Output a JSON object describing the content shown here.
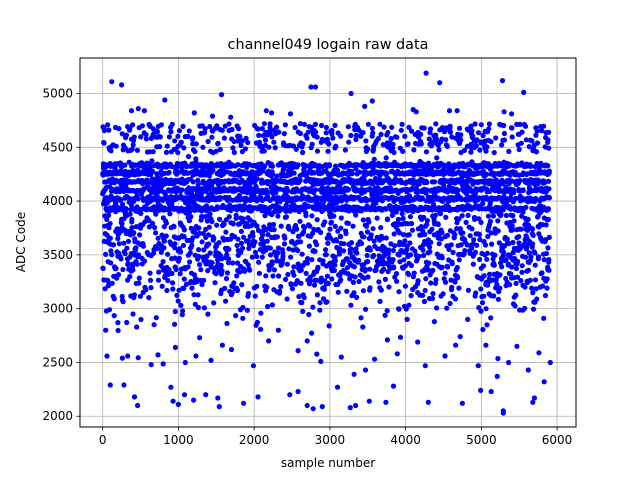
{
  "chart_data": {
    "type": "scatter",
    "title": "channel049 logain raw data",
    "xlabel": "sample number",
    "ylabel": "ADC Code",
    "xlim": [
      -300,
      6250
    ],
    "ylim": [
      1900,
      5330
    ],
    "xticks": [
      0,
      1000,
      2000,
      3000,
      4000,
      5000,
      6000
    ],
    "yticks": [
      2000,
      2500,
      3000,
      3500,
      4000,
      4500,
      5000
    ],
    "xtick_labels": [
      "0",
      "1000",
      "2000",
      "3000",
      "4000",
      "5000",
      "6000"
    ],
    "ytick_labels": [
      "2000",
      "2500",
      "3000",
      "3500",
      "4000",
      "4500",
      "5000"
    ],
    "grid": true,
    "marker_color": "#0000ff",
    "series": [
      {
        "points": [
          [
            120,
            5110
          ],
          [
            250,
            5080
          ],
          [
            4270,
            5190
          ],
          [
            4450,
            5100
          ],
          [
            5280,
            5120
          ],
          [
            5560,
            5010
          ],
          [
            2750,
            5060
          ],
          [
            2810,
            5060
          ],
          [
            3280,
            5000
          ],
          [
            1570,
            4990
          ],
          [
            20,
            4670
          ],
          [
            80,
            4660
          ],
          [
            380,
            4840
          ],
          [
            470,
            4860
          ],
          [
            550,
            4840
          ],
          [
            820,
            4940
          ],
          [
            1210,
            4820
          ],
          [
            1450,
            4790
          ],
          [
            1690,
            4780
          ],
          [
            2160,
            4840
          ],
          [
            2230,
            4820
          ],
          [
            2480,
            4810
          ],
          [
            3460,
            4880
          ],
          [
            3560,
            4930
          ],
          [
            4100,
            4850
          ],
          [
            4140,
            4830
          ],
          [
            4580,
            4840
          ],
          [
            4680,
            4840
          ],
          [
            5000,
            4710
          ],
          [
            5300,
            4830
          ],
          [
            5400,
            4810
          ],
          [
            5720,
            4680
          ],
          [
            5880,
            4570
          ],
          [
            100,
            2290
          ],
          [
            280,
            2290
          ],
          [
            330,
            2560
          ],
          [
            260,
            2540
          ],
          [
            420,
            2180
          ],
          [
            460,
            2100
          ],
          [
            900,
            2270
          ],
          [
            930,
            2140
          ],
          [
            1000,
            2110
          ],
          [
            1080,
            2200
          ],
          [
            1200,
            2150
          ],
          [
            1360,
            2200
          ],
          [
            1520,
            2170
          ],
          [
            1540,
            2090
          ],
          [
            1860,
            2120
          ],
          [
            2050,
            2180
          ],
          [
            2470,
            2200
          ],
          [
            2580,
            2230
          ],
          [
            2700,
            2100
          ],
          [
            2780,
            2070
          ],
          [
            2900,
            2090
          ],
          [
            3100,
            2270
          ],
          [
            3270,
            2080
          ],
          [
            3340,
            2100
          ],
          [
            3520,
            2140
          ],
          [
            3740,
            2130
          ],
          [
            3840,
            2280
          ],
          [
            4300,
            2130
          ],
          [
            4750,
            2120
          ],
          [
            4990,
            2240
          ],
          [
            5130,
            2230
          ],
          [
            5290,
            2050
          ],
          [
            5290,
            2030
          ],
          [
            5680,
            2130
          ],
          [
            5700,
            2170
          ],
          [
            5830,
            2320
          ],
          [
            40,
            2800
          ],
          [
            90,
            2990
          ],
          [
            200,
            2870
          ],
          [
            400,
            2950
          ],
          [
            640,
            2480
          ],
          [
            730,
            2570
          ],
          [
            960,
            2640
          ],
          [
            1090,
            2500
          ],
          [
            1230,
            2560
          ],
          [
            1280,
            2730
          ],
          [
            1430,
            2520
          ],
          [
            1580,
            2660
          ],
          [
            1700,
            2620
          ],
          [
            1850,
            2910
          ],
          [
            1990,
            2470
          ],
          [
            2190,
            2700
          ],
          [
            2320,
            2800
          ],
          [
            2580,
            2610
          ],
          [
            2700,
            2700
          ],
          [
            2880,
            2510
          ],
          [
            2990,
            2840
          ],
          [
            3150,
            2550
          ],
          [
            3320,
            2390
          ],
          [
            3470,
            2430
          ],
          [
            3590,
            2530
          ],
          [
            3760,
            2710
          ],
          [
            3890,
            2580
          ],
          [
            4020,
            2900
          ],
          [
            4160,
            2690
          ],
          [
            4260,
            2470
          ],
          [
            4380,
            2880
          ],
          [
            4520,
            2560
          ],
          [
            4660,
            2660
          ],
          [
            4820,
            2900
          ],
          [
            4960,
            2470
          ],
          [
            5060,
            2660
          ],
          [
            5210,
            2370
          ],
          [
            5360,
            2500
          ],
          [
            5470,
            2650
          ],
          [
            5620,
            2430
          ],
          [
            5760,
            2590
          ],
          [
            5910,
            2500
          ]
        ]
      }
    ]
  }
}
